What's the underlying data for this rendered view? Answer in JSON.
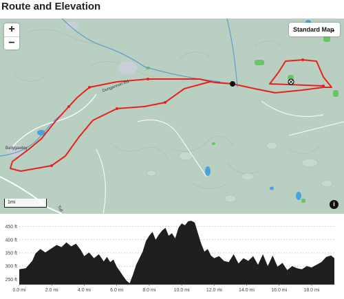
{
  "page_title": "Route and Elevation",
  "map": {
    "zoom_in": "+",
    "zoom_out": "−",
    "map_type": "Standard Map",
    "scale_label": "1mi",
    "info": "i",
    "place_ballygawley": "Ballygawley",
    "road_dungannon": "Dungannon Rd",
    "road_tull": "Tull"
  },
  "chart_data": {
    "type": "area",
    "title": "",
    "xlabel": "",
    "ylabel": "",
    "x_unit": "mi",
    "y_unit": "ft",
    "xlim": [
      0,
      19.4
    ],
    "ylim": [
      230,
      475
    ],
    "x_ticks": [
      "0.0 mi",
      "2.0 mi",
      "4.0 mi",
      "6.0 mi",
      "8.0 mi",
      "10.0 mi",
      "12.0 mi",
      "14.0 mi",
      "16.0 mi",
      "18.0 mi"
    ],
    "y_ticks": [
      "250 ft",
      "300 ft",
      "350 ft",
      "400 ft",
      "450 ft"
    ],
    "grid": true,
    "series": [
      {
        "x": [
          0.0,
          0.4,
          0.8,
          1.0,
          1.3,
          1.6,
          2.0,
          2.3,
          2.6,
          2.9,
          3.2,
          3.5,
          3.8,
          4.0,
          4.3,
          4.6,
          4.9,
          5.2,
          5.4,
          5.6,
          5.8,
          6.0,
          6.2,
          6.4,
          6.6,
          6.8,
          7.0,
          7.2,
          7.4,
          7.6,
          7.8,
          8.0,
          8.2,
          8.4,
          8.6,
          8.8,
          9.0,
          9.2,
          9.4,
          9.6,
          9.8,
          10.0,
          10.2,
          10.4,
          10.6,
          10.8,
          11.0,
          11.2,
          11.4,
          11.6,
          11.8,
          12.0,
          12.3,
          12.6,
          12.9,
          13.2,
          13.5,
          13.8,
          14.1,
          14.4,
          14.7,
          15.0,
          15.3,
          15.6,
          15.9,
          16.2,
          16.5,
          16.8,
          17.1,
          17.4,
          17.7,
          18.0,
          18.3,
          18.6,
          18.9,
          19.2,
          19.4
        ],
        "values": [
          288,
          292,
          320,
          348,
          365,
          352,
          368,
          380,
          372,
          390,
          375,
          385,
          360,
          338,
          352,
          330,
          345,
          318,
          335,
          315,
          325,
          298,
          280,
          262,
          245,
          235,
          268,
          305,
          330,
          355,
          395,
          415,
          430,
          400,
          420,
          435,
          445,
          415,
          425,
          405,
          445,
          462,
          455,
          470,
          472,
          465,
          425,
          385,
          355,
          365,
          340,
          330,
          338,
          320,
          315,
          345,
          310,
          330,
          320,
          338,
          305,
          345,
          300,
          340,
          298,
          312,
          285,
          300,
          292,
          288,
          300,
          295,
          305,
          315,
          335,
          340,
          330
        ]
      }
    ]
  }
}
